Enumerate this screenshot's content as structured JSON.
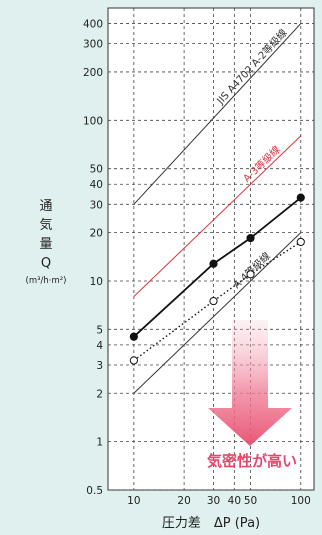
{
  "chart_data": {
    "type": "line",
    "xscale": "log",
    "yscale": "log",
    "xlim": [
      7,
      120
    ],
    "ylim": [
      0.5,
      500
    ],
    "xticks": [
      10,
      20,
      30,
      40,
      50,
      100
    ],
    "xtick_labels": [
      "10",
      "20",
      "30",
      "40",
      "50",
      "100"
    ],
    "yticks": [
      0.5,
      1,
      2,
      3,
      4,
      5,
      10,
      20,
      30,
      40,
      50,
      100,
      200,
      300,
      400
    ],
    "ytick_labels": [
      "0.5",
      "1",
      "2",
      "3",
      "4",
      "5",
      "10",
      "20",
      "30",
      "40",
      "50",
      "100",
      "200",
      "300",
      "400"
    ],
    "ylabel_chars": [
      "通",
      "気",
      "量",
      "Q"
    ],
    "yunit": "(m³/h·m²)",
    "xlabel": "圧力差　ΔP (Pa)",
    "grid": true,
    "boundaries": [
      {
        "label": "JIS A4702 A-2等級線",
        "x": [
          10,
          100
        ],
        "y": [
          30,
          400
        ],
        "color": "#333333"
      },
      {
        "label": "A-3等級線",
        "x": [
          10,
          100
        ],
        "y": [
          8,
          80
        ],
        "color": "#d9363e"
      },
      {
        "label": "A-4等級線",
        "x": [
          10,
          100
        ],
        "y": [
          2,
          20
        ],
        "color": "#333333"
      }
    ],
    "series": [
      {
        "x": [
          10,
          30,
          50,
          100
        ],
        "y": [
          4.5,
          12.8,
          18.5,
          33
        ],
        "marker": "filled",
        "line": "solid",
        "color": "#111111"
      },
      {
        "x": [
          10,
          30,
          50,
          100
        ],
        "y": [
          3.2,
          7.5,
          11,
          17.5
        ],
        "marker": "open",
        "line": "dotted",
        "color": "#111111"
      }
    ],
    "callout": "気密性が高い"
  }
}
